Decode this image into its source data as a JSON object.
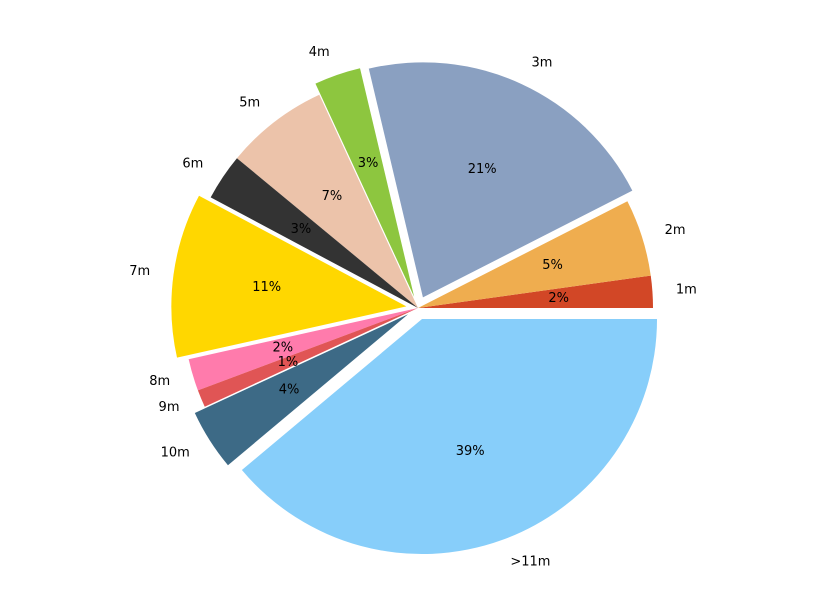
{
  "chart_data": {
    "type": "pie",
    "categories": [
      "1m",
      "2m",
      "3m",
      "4m",
      "5m",
      "6m",
      "7m",
      "8m",
      "9m",
      "10m",
      ">11m"
    ],
    "values": [
      2.2,
      5.3,
      21.2,
      3.2,
      7.1,
      3.2,
      11.3,
      2.2,
      1.2,
      4.2,
      38.9
    ],
    "value_labels": [
      "2%",
      "5%",
      "21%",
      "3%",
      "7%",
      "3%",
      "11%",
      "2%",
      "1%",
      "4%",
      "39%"
    ],
    "colors": [
      "#d24726",
      "#efad4f",
      "#8aa0c1",
      "#8dc63f",
      "#ecc3aa",
      "#333333",
      "#ffd700",
      "#ff7bac",
      "#e05555",
      "#3d6a86",
      "#87cefa"
    ],
    "explode": [
      0,
      0,
      0.05,
      0.05,
      0,
      0,
      0.05,
      0,
      0,
      0.05,
      0.05
    ]
  }
}
